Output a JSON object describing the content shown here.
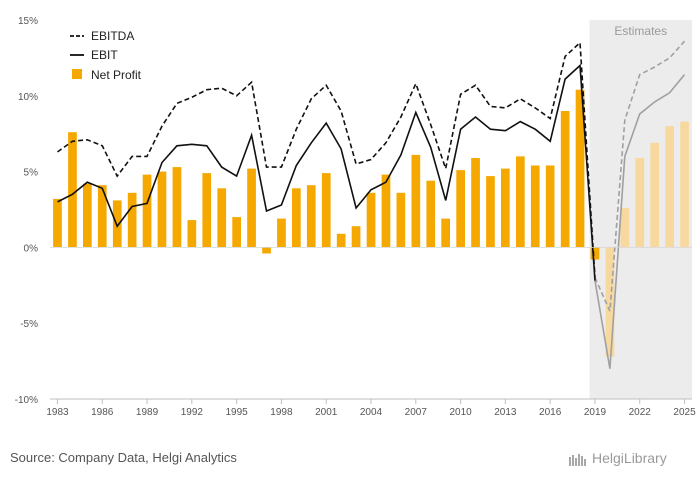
{
  "chart_data": {
    "type": "bar+line",
    "title": "",
    "xlabel": "",
    "ylabel": "",
    "ylim": [
      -10,
      15
    ],
    "y_ticks": [
      "15%",
      "10%",
      "5%",
      "0%",
      "-5%",
      "-10%"
    ],
    "x_tick_labels": [
      "1983",
      "1986",
      "1989",
      "1992",
      "1995",
      "1998",
      "2001",
      "2004",
      "2007",
      "2010",
      "2013",
      "2016",
      "2019",
      "2022",
      "2025"
    ],
    "estimates_label": "Estimates",
    "estimates_from": 2019,
    "x": [
      1983,
      1984,
      1985,
      1986,
      1987,
      1988,
      1989,
      1990,
      1991,
      1992,
      1993,
      1994,
      1995,
      1996,
      1997,
      1998,
      1999,
      2000,
      2001,
      2002,
      2003,
      2004,
      2005,
      2006,
      2007,
      2008,
      2009,
      2010,
      2011,
      2012,
      2013,
      2014,
      2015,
      2016,
      2017,
      2018,
      2019,
      2020,
      2021,
      2022,
      2023,
      2024,
      2025
    ],
    "series": [
      {
        "name": "EBITDA",
        "type": "line",
        "style": "dashed",
        "values": [
          6.3,
          7.0,
          7.1,
          6.7,
          4.7,
          6.0,
          6.0,
          8.0,
          9.5,
          9.9,
          10.4,
          10.5,
          10.0,
          10.9,
          5.3,
          5.3,
          7.8,
          9.8,
          10.7,
          9.0,
          5.5,
          5.8,
          6.9,
          8.6,
          10.8,
          8.1,
          5.2,
          10.1,
          10.7,
          9.3,
          9.2,
          9.8,
          9.2,
          8.5,
          12.6,
          13.5,
          -2.0,
          -4.2,
          8.4,
          11.4,
          11.9,
          12.5,
          13.6
        ]
      },
      {
        "name": "EBIT",
        "type": "line",
        "style": "solid",
        "values": [
          3.0,
          3.5,
          4.3,
          3.9,
          1.4,
          2.7,
          2.9,
          5.6,
          6.7,
          6.8,
          6.7,
          5.3,
          4.7,
          7.4,
          2.4,
          2.8,
          5.4,
          6.9,
          8.2,
          6.5,
          2.6,
          3.8,
          4.3,
          6.1,
          8.9,
          6.6,
          3.1,
          7.8,
          8.6,
          7.8,
          7.7,
          8.3,
          7.8,
          7.0,
          11.1,
          12.0,
          -2.2,
          -8.0,
          6.0,
          8.8,
          9.6,
          10.2,
          11.4
        ]
      },
      {
        "name": "Net Profit",
        "type": "bar",
        "values": [
          3.2,
          7.6,
          4.2,
          4.1,
          3.1,
          3.6,
          4.8,
          5.0,
          5.3,
          1.8,
          4.9,
          3.9,
          2.0,
          5.2,
          -0.4,
          1.9,
          3.9,
          4.1,
          4.9,
          0.9,
          1.4,
          3.6,
          4.8,
          3.6,
          6.1,
          4.4,
          1.9,
          5.1,
          5.9,
          4.7,
          5.2,
          6.0,
          5.4,
          5.4,
          9.0,
          10.4,
          -0.8,
          -7.2,
          2.6,
          5.9,
          6.9,
          8.0,
          8.3
        ]
      }
    ],
    "colors": {
      "bar": "#f5a800",
      "bar_estimate": "#f7d9a0",
      "line": "#111111",
      "line_estimate": "#a0a0a0",
      "estimate_bg": "#ececec",
      "axis": "#bfbfbf"
    },
    "legend_position": "top-left",
    "grid": false
  },
  "footer": {
    "source": "Source: Company Data, Helgi Analytics",
    "brand": "HelgiLibrary"
  }
}
